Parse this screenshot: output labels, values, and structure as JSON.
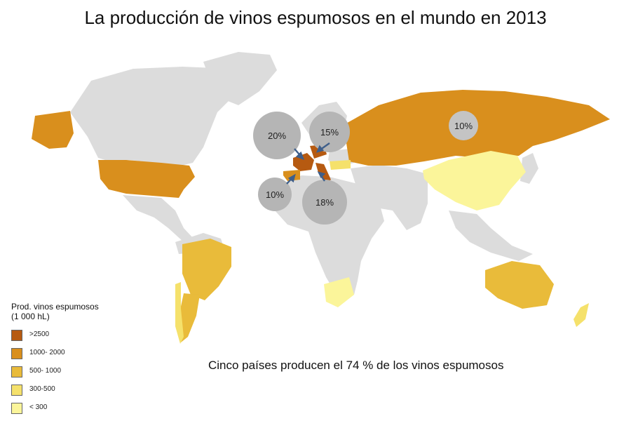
{
  "title": "La producción de vinos espumosos en el mundo en 2013",
  "caption": "Cinco países producen el 74 % de los vinos espumosos",
  "legend": {
    "title_line1": "Prod. vinos espumosos",
    "title_line2": "(1 000 hL)",
    "items": [
      {
        "label": ">2500",
        "color": "#b65a11"
      },
      {
        "label": "1000- 2000",
        "color": "#d98f1d"
      },
      {
        "label": "500- 1000",
        "color": "#e9bb3a"
      },
      {
        "label": "300-500",
        "color": "#f5e16b"
      },
      {
        "label": "< 300",
        "color": "#fbf59a"
      }
    ]
  },
  "colors": {
    "land_no_data": "#dcdcdc",
    "bubble": "#b5b5b5",
    "arrow": "#3f5f8a"
  },
  "share_bubbles": [
    "20%",
    "15%",
    "10%",
    "18%",
    "10%"
  ]
}
